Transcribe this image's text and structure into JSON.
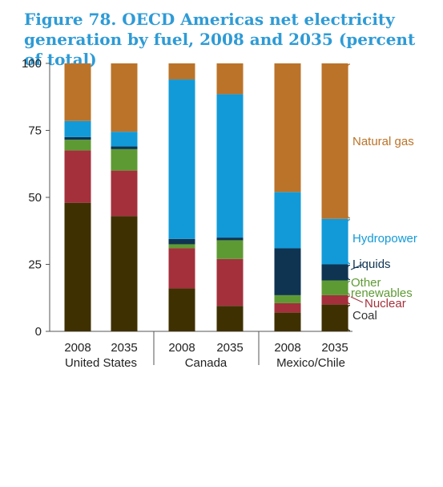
{
  "title": "Figure 78. OECD Americas net electricity generation by fuel, 2008 and 2035 (percent of total)",
  "chart_data": {
    "type": "bar",
    "stacked": true,
    "ylim": [
      0,
      100
    ],
    "yticks": [
      0,
      25,
      50,
      75,
      100
    ],
    "groups": [
      "United States",
      "Canada",
      "Mexico/Chile"
    ],
    "categories": [
      "2008",
      "2035",
      "2008",
      "2035",
      "2008",
      "2035"
    ],
    "category_group": [
      0,
      0,
      1,
      1,
      2,
      2
    ],
    "series": [
      {
        "name": "Coal",
        "color": "#3f3002",
        "label_color": "#333333",
        "values": [
          48,
          43,
          16,
          9.5,
          7,
          10
        ]
      },
      {
        "name": "Nuclear",
        "color": "#a4303c",
        "label_color": "#a4303c",
        "values": [
          19.5,
          17,
          15,
          17.5,
          3.5,
          3.5
        ]
      },
      {
        "name": "Other renewables",
        "label_lines": [
          "Other",
          "renewables"
        ],
        "color": "#5e9a33",
        "label_color": "#5e9a33",
        "values": [
          4,
          8,
          1.5,
          7,
          3,
          5.5
        ]
      },
      {
        "name": "Liquids",
        "color": "#0f3452",
        "label_color": "#0f3452",
        "values": [
          1,
          1,
          2,
          1,
          17.5,
          6
        ]
      },
      {
        "name": "Hydropower",
        "color": "#129ad8",
        "label_color": "#129ad8",
        "values": [
          6,
          5.5,
          59.5,
          53.5,
          21,
          17
        ]
      },
      {
        "name": "Natural gas",
        "color": "#bb7329",
        "label_color": "#bb7329",
        "values": [
          21.5,
          25.5,
          6,
          11.5,
          48,
          58
        ]
      }
    ],
    "grid": false,
    "legend": "right, inline labels with brackets"
  }
}
